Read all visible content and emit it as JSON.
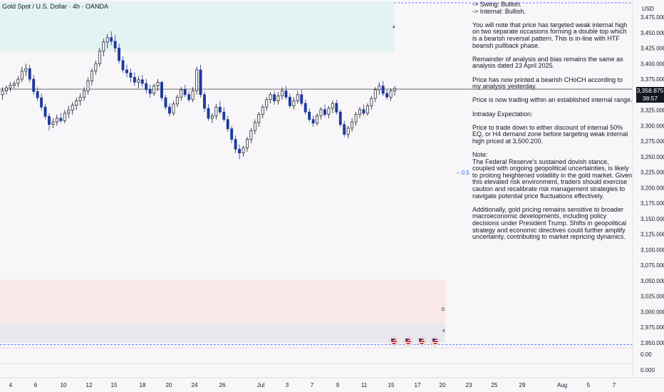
{
  "header": {
    "title": "Gold Spot / U.S. Dollar · 4h · OANDA"
  },
  "price_scale": {
    "currency": "USD",
    "last_price": "3,358.875",
    "countdown": "38:57",
    "ticks": [
      "3,475.000",
      "3,450.000",
      "3,425.000",
      "3,400.000",
      "3,375.000",
      "3,325.000",
      "3,300.000",
      "3,275.000",
      "3,250.000",
      "3,225.000",
      "3,200.000",
      "3,175.000",
      "3,150.000",
      "3,125.000",
      "3,100.000",
      "3,075.000",
      "3,050.000",
      "3,025.000",
      "3,000.000",
      "2,975.000",
      "2,950.000"
    ],
    "indicator_ticks": [
      "0.00",
      "0.000"
    ]
  },
  "time_axis": {
    "ticks": [
      "4",
      "6",
      "10",
      "12",
      "15",
      "18",
      "20",
      "24",
      "26",
      "Jul",
      "3",
      "7",
      "9",
      "11",
      "15",
      "17",
      "20",
      "23",
      "25",
      "29",
      "Aug",
      "5",
      "7"
    ]
  },
  "fib_label": "0.5",
  "zone_labels": {
    "upper_zone": "4",
    "lower_zone_d": "D",
    "lower_zone_4": "4"
  },
  "notes": [
    "-> Swing:  Bullish.\n-> Internal:  Bullish.",
    "You will note that price has targeted weak internal high on two separate occasions forming a double top which is a bearish reversal pattern. This is in-line with HTF bearish pullback phase.",
    "Remainder of analysis and bias remains the same as analysis dated 23 April 2025.",
    "Price has now printed a bearish CHoCH according to my analysis yesterday.",
    "Price is now trading within an established internal range.",
    "Intraday Expectation:",
    "Price to trade down to either discount of internal 50% EQ, or H4 demand zone before targeting weak internal high priced at 3,500.200.",
    "Note:\nThe Federal Reserve's sustained dovish stance, coupled with ongoing geopolitical uncertainties, is likely to prolong heightened volatility in the gold market. Given this elevated risk environment, traders should exercise caution and recalibrate risk management strategies to navigate potential price fluctuations effectively.",
    "Additionally, gold pricing remains sensitive to broader macroeconomic developments, including policy decisions under President Trump. Shifts in geopolitical strategy and economic directives could further amplify uncertainty, contributing to market repricing dynamics."
  ],
  "colors": {
    "bull": "#131722",
    "bear": "#1e3a9a",
    "supply_zone": "#e2f3f2",
    "demand_zone": "#f8e8e8",
    "demand_zone_2": "#ebe7ee",
    "level_line": "#2962ff"
  },
  "chart_data": {
    "type": "candlestick",
    "title": "Gold Spot / U.S. Dollar · 4h · OANDA",
    "ylim": [
      2935,
      3490
    ],
    "candles": [
      [
        3350,
        3362,
        3342,
        3356
      ],
      [
        3356,
        3365,
        3350,
        3361
      ],
      [
        3361,
        3370,
        3355,
        3365
      ],
      [
        3365,
        3372,
        3360,
        3368
      ],
      [
        3368,
        3380,
        3362,
        3375
      ],
      [
        3375,
        3395,
        3370,
        3388
      ],
      [
        3388,
        3400,
        3380,
        3392
      ],
      [
        3392,
        3398,
        3370,
        3375
      ],
      [
        3375,
        3382,
        3350,
        3355
      ],
      [
        3355,
        3362,
        3340,
        3345
      ],
      [
        3345,
        3352,
        3325,
        3330
      ],
      [
        3330,
        3335,
        3310,
        3315
      ],
      [
        3315,
        3320,
        3292,
        3302
      ],
      [
        3302,
        3312,
        3296,
        3306
      ],
      [
        3306,
        3318,
        3300,
        3312
      ],
      [
        3312,
        3320,
        3304,
        3308
      ],
      [
        3308,
        3325,
        3304,
        3320
      ],
      [
        3320,
        3332,
        3312,
        3325
      ],
      [
        3325,
        3338,
        3318,
        3333
      ],
      [
        3333,
        3345,
        3325,
        3340
      ],
      [
        3340,
        3352,
        3332,
        3346
      ],
      [
        3346,
        3362,
        3340,
        3356
      ],
      [
        3356,
        3378,
        3350,
        3372
      ],
      [
        3372,
        3392,
        3365,
        3388
      ],
      [
        3388,
        3405,
        3382,
        3400
      ],
      [
        3400,
        3425,
        3395,
        3420
      ],
      [
        3420,
        3440,
        3412,
        3435
      ],
      [
        3435,
        3448,
        3425,
        3442
      ],
      [
        3442,
        3452,
        3430,
        3436
      ],
      [
        3436,
        3446,
        3418,
        3425
      ],
      [
        3425,
        3432,
        3400,
        3405
      ],
      [
        3405,
        3412,
        3385,
        3390
      ],
      [
        3390,
        3398,
        3378,
        3385
      ],
      [
        3385,
        3392,
        3370,
        3378
      ],
      [
        3378,
        3386,
        3364,
        3370
      ],
      [
        3370,
        3380,
        3360,
        3374
      ],
      [
        3374,
        3382,
        3362,
        3368
      ],
      [
        3368,
        3375,
        3352,
        3358
      ],
      [
        3358,
        3366,
        3345,
        3352
      ],
      [
        3352,
        3368,
        3348,
        3364
      ],
      [
        3364,
        3375,
        3356,
        3370
      ],
      [
        3370,
        3372,
        3340,
        3345
      ],
      [
        3345,
        3350,
        3326,
        3330
      ],
      [
        3330,
        3336,
        3315,
        3320
      ],
      [
        3320,
        3340,
        3316,
        3335
      ],
      [
        3335,
        3350,
        3330,
        3346
      ],
      [
        3346,
        3362,
        3340,
        3358
      ],
      [
        3358,
        3366,
        3346,
        3350
      ],
      [
        3350,
        3356,
        3338,
        3342
      ],
      [
        3342,
        3362,
        3338,
        3356
      ],
      [
        3356,
        3395,
        3350,
        3390
      ],
      [
        3390,
        3398,
        3345,
        3350
      ],
      [
        3350,
        3355,
        3322,
        3328
      ],
      [
        3328,
        3335,
        3308,
        3312
      ],
      [
        3312,
        3320,
        3304,
        3316
      ],
      [
        3316,
        3335,
        3310,
        3330
      ],
      [
        3330,
        3340,
        3318,
        3322
      ],
      [
        3322,
        3330,
        3306,
        3310
      ],
      [
        3310,
        3316,
        3290,
        3295
      ],
      [
        3295,
        3300,
        3272,
        3278
      ],
      [
        3278,
        3284,
        3256,
        3262
      ],
      [
        3262,
        3270,
        3246,
        3256
      ],
      [
        3256,
        3268,
        3250,
        3264
      ],
      [
        3264,
        3282,
        3258,
        3278
      ],
      [
        3278,
        3296,
        3272,
        3292
      ],
      [
        3292,
        3310,
        3286,
        3305
      ],
      [
        3305,
        3322,
        3298,
        3318
      ],
      [
        3318,
        3334,
        3312,
        3330
      ],
      [
        3330,
        3346,
        3324,
        3342
      ],
      [
        3342,
        3354,
        3336,
        3350
      ],
      [
        3350,
        3356,
        3334,
        3340
      ],
      [
        3340,
        3354,
        3334,
        3348
      ],
      [
        3348,
        3362,
        3342,
        3356
      ],
      [
        3356,
        3364,
        3342,
        3346
      ],
      [
        3346,
        3352,
        3328,
        3332
      ],
      [
        3332,
        3346,
        3326,
        3340
      ],
      [
        3340,
        3356,
        3335,
        3350
      ],
      [
        3350,
        3358,
        3332,
        3336
      ],
      [
        3336,
        3342,
        3318,
        3322
      ],
      [
        3322,
        3328,
        3306,
        3310
      ],
      [
        3310,
        3316,
        3298,
        3304
      ],
      [
        3304,
        3320,
        3300,
        3316
      ],
      [
        3316,
        3330,
        3310,
        3326
      ],
      [
        3326,
        3334,
        3314,
        3318
      ],
      [
        3318,
        3332,
        3312,
        3328
      ],
      [
        3328,
        3340,
        3320,
        3336
      ],
      [
        3336,
        3342,
        3318,
        3322
      ],
      [
        3322,
        3326,
        3298,
        3302
      ],
      [
        3302,
        3308,
        3282,
        3286
      ],
      [
        3286,
        3300,
        3280,
        3296
      ],
      [
        3296,
        3312,
        3290,
        3306
      ],
      [
        3306,
        3322,
        3300,
        3318
      ],
      [
        3318,
        3330,
        3312,
        3326
      ],
      [
        3326,
        3334,
        3316,
        3320
      ],
      [
        3320,
        3336,
        3316,
        3332
      ],
      [
        3332,
        3348,
        3326,
        3344
      ],
      [
        3344,
        3362,
        3338,
        3358
      ],
      [
        3358,
        3370,
        3350,
        3364
      ],
      [
        3364,
        3372,
        3348,
        3352
      ],
      [
        3352,
        3358,
        3342,
        3346
      ],
      [
        3346,
        3360,
        3340,
        3356
      ],
      [
        3356,
        3364,
        3348,
        3360
      ]
    ],
    "levels": [
      {
        "name": "weak-internal-high",
        "value": 3500.2
      },
      {
        "name": "price-line",
        "value": 3358.875
      },
      {
        "name": "weak-low",
        "value": 2947
      }
    ],
    "zones": [
      {
        "name": "h4-supply-zone",
        "from": 3420,
        "to": 3500
      },
      {
        "name": "daily-demand-zone",
        "from": 2983,
        "to": 3052
      },
      {
        "name": "h4-demand-zone",
        "from": 2950,
        "to": 2983
      }
    ]
  }
}
